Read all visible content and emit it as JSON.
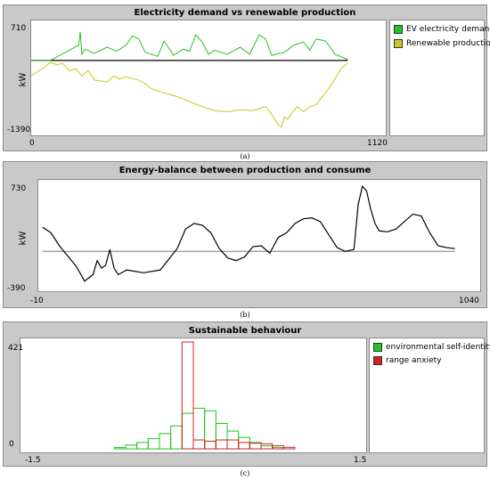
{
  "panel_a": {
    "title": "Electricity demand vs renewable production",
    "ylabel": "kW",
    "y_max": "710",
    "y_min": "-1390",
    "x_min": "0",
    "x_max": "1120",
    "legend": [
      "EV electricity demand",
      "Renewable production"
    ],
    "caption": "(a)"
  },
  "panel_b": {
    "title": "Energy-balance between production and consume",
    "ylabel": "kW",
    "y_max": "730",
    "y_min": "-390",
    "x_min": "-10",
    "x_max": "1040",
    "caption": "(b)"
  },
  "panel_c": {
    "title": "Sustainable behaviour",
    "y_max": "421",
    "y_min": "0",
    "x_min": "-1.5",
    "x_max": "1.5",
    "legend": [
      "environmental self-identity",
      "range anxiety"
    ],
    "caption": "(c)"
  },
  "colors": {
    "demand": "#22c422",
    "renewable": "#c8c81e",
    "balance": "#000000",
    "identity": "#22c422",
    "anxiety": "#d42020"
  },
  "chart_data": [
    {
      "type": "line",
      "title": "Electricity demand vs renewable production",
      "ylabel": "kW",
      "xlim": [
        0,
        1120
      ],
      "ylim": [
        -1390,
        710
      ],
      "series": [
        {
          "name": "EV electricity demand",
          "x": [
            0,
            60,
            120,
            150,
            155,
            160,
            170,
            200,
            240,
            270,
            300,
            320,
            340,
            360,
            400,
            420,
            450,
            480,
            500,
            520,
            540,
            560,
            580,
            620,
            660,
            690,
            720,
            740,
            760,
            800,
            830,
            860,
            880,
            900,
            930,
            960,
            1000
          ],
          "y": [
            0,
            0,
            200,
            300,
            560,
            120,
            220,
            140,
            260,
            180,
            300,
            480,
            420,
            160,
            80,
            380,
            100,
            220,
            180,
            500,
            360,
            120,
            200,
            120,
            260,
            120,
            500,
            420,
            100,
            160,
            300,
            360,
            200,
            420,
            380,
            120,
            20
          ]
        },
        {
          "name": "Renewable production",
          "x": [
            0,
            20,
            40,
            60,
            80,
            100,
            120,
            140,
            160,
            180,
            200,
            240,
            260,
            280,
            300,
            340,
            360,
            380,
            420,
            460,
            500,
            540,
            580,
            620,
            660,
            700,
            740,
            760,
            780,
            790,
            800,
            810,
            820,
            840,
            860,
            880,
            900,
            920,
            940,
            960,
            980,
            1000
          ],
          "y": [
            -300,
            -220,
            -140,
            -40,
            -80,
            -60,
            -200,
            -160,
            -300,
            -200,
            -380,
            -420,
            -300,
            -360,
            -320,
            -380,
            -450,
            -550,
            -630,
            -700,
            -800,
            -900,
            -980,
            -1000,
            -960,
            -980,
            -900,
            -1050,
            -1250,
            -1300,
            -1100,
            -1150,
            -1050,
            -900,
            -1000,
            -900,
            -860,
            -700,
            -550,
            -350,
            -150,
            -50
          ]
        }
      ]
    },
    {
      "type": "line",
      "title": "Energy-balance between production and consume",
      "ylabel": "kW",
      "xlim": [
        -10,
        1040
      ],
      "ylim": [
        -390,
        730
      ],
      "series": [
        {
          "x": [
            0,
            20,
            40,
            60,
            80,
            100,
            120,
            130,
            140,
            150,
            160,
            170,
            180,
            200,
            240,
            280,
            320,
            340,
            360,
            380,
            400,
            420,
            440,
            460,
            480,
            500,
            520,
            540,
            560,
            580,
            600,
            620,
            640,
            660,
            680,
            700,
            720,
            740,
            750,
            760,
            770,
            780,
            790,
            800,
            820,
            840,
            860,
            880,
            900,
            920,
            940,
            960,
            980
          ],
          "y": [
            260,
            200,
            60,
            -50,
            -160,
            -320,
            -250,
            -100,
            -180,
            -150,
            20,
            -180,
            -250,
            -200,
            -230,
            -200,
            30,
            240,
            300,
            280,
            200,
            30,
            -70,
            -100,
            -60,
            50,
            60,
            -20,
            150,
            200,
            300,
            350,
            360,
            320,
            180,
            40,
            0,
            20,
            500,
            700,
            650,
            450,
            300,
            220,
            210,
            240,
            320,
            400,
            380,
            200,
            60,
            40,
            30
          ]
        }
      ]
    },
    {
      "type": "bar",
      "title": "Sustainable behaviour",
      "xlim": [
        -1.5,
        1.5
      ],
      "ylim": [
        0,
        421
      ],
      "series": [
        {
          "name": "environmental self-identity",
          "bin_starts": [
            -0.7,
            -0.6,
            -0.5,
            -0.4,
            -0.3,
            -0.2,
            -0.1,
            0.0,
            0.1,
            0.2,
            0.3,
            0.4,
            0.5,
            0.6,
            0.7
          ],
          "values": [
            5,
            15,
            25,
            40,
            60,
            90,
            140,
            160,
            150,
            100,
            70,
            45,
            25,
            12,
            5
          ]
        },
        {
          "name": "range anxiety",
          "bin_starts": [
            -0.2,
            -0.1,
            0.0,
            0.1,
            0.2,
            0.3,
            0.4,
            0.5,
            0.6,
            0.7,
            0.8
          ],
          "values": [
            0,
            421,
            35,
            30,
            35,
            35,
            25,
            22,
            20,
            12,
            6
          ]
        }
      ]
    }
  ]
}
